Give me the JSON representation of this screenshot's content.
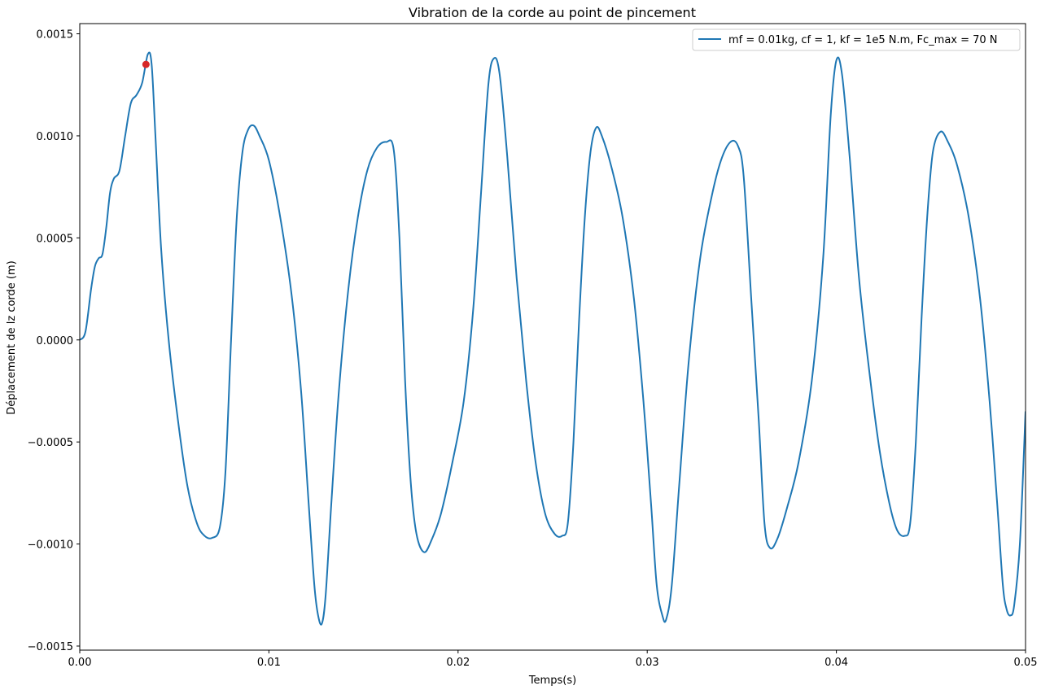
{
  "chart_data": {
    "type": "line",
    "title": "Vibration de la corde au point de pincement",
    "xlabel": "Temps(s)",
    "ylabel": "Déplacement de lz corde (m)",
    "xlim": [
      0.0,
      0.05
    ],
    "ylim": [
      -0.00152,
      0.00155
    ],
    "x_ticks": [
      {
        "value": 0.0,
        "label": "0.00"
      },
      {
        "value": 0.01,
        "label": "0.01"
      },
      {
        "value": 0.02,
        "label": "0.02"
      },
      {
        "value": 0.03,
        "label": "0.03"
      },
      {
        "value": 0.04,
        "label": "0.04"
      },
      {
        "value": 0.05,
        "label": "0.05"
      }
    ],
    "y_ticks": [
      {
        "value": 0.0015,
        "label": "0.0015"
      },
      {
        "value": 0.001,
        "label": "0.0010"
      },
      {
        "value": 0.0005,
        "label": "0.0005"
      },
      {
        "value": 0.0,
        "label": "0.0000"
      },
      {
        "value": -0.0005,
        "label": "−0.0005"
      },
      {
        "value": -0.001,
        "label": "−0.0010"
      },
      {
        "value": -0.0015,
        "label": "−0.0015"
      }
    ],
    "grid": false,
    "legend_position": "top-right",
    "series": [
      {
        "name": "mf = 0.01kg, cf = 1, kf = 1e5 N.m, Fc_max = 70 N",
        "color": "#1f77b4",
        "points": [
          [
            0.0,
            0.0
          ],
          [
            0.0003,
            4e-05
          ],
          [
            0.0006,
            0.00025
          ],
          [
            0.0008,
            0.00036
          ],
          [
            0.001,
            0.0004
          ],
          [
            0.0012,
            0.00042
          ],
          [
            0.0014,
            0.00055
          ],
          [
            0.0016,
            0.00072
          ],
          [
            0.0018,
            0.00079
          ],
          [
            0.0021,
            0.00083
          ],
          [
            0.0024,
            0.001
          ],
          [
            0.0027,
            0.00116
          ],
          [
            0.003,
            0.0012
          ],
          [
            0.0033,
            0.00126
          ],
          [
            0.0036,
            0.0014
          ],
          [
            0.0038,
            0.00135
          ],
          [
            0.004,
            0.001
          ],
          [
            0.0043,
            0.00045
          ],
          [
            0.0047,
            0.0
          ],
          [
            0.0052,
            -0.0004
          ],
          [
            0.0057,
            -0.00072
          ],
          [
            0.0062,
            -0.0009
          ],
          [
            0.0066,
            -0.00096
          ],
          [
            0.007,
            -0.00097
          ],
          [
            0.0074,
            -0.00092
          ],
          [
            0.0077,
            -0.00065
          ],
          [
            0.008,
            0.0
          ],
          [
            0.0083,
            0.0006
          ],
          [
            0.0086,
            0.00092
          ],
          [
            0.0089,
            0.00103
          ],
          [
            0.0092,
            0.00105
          ],
          [
            0.0095,
            0.001
          ],
          [
            0.01,
            0.00088
          ],
          [
            0.0106,
            0.0006
          ],
          [
            0.0112,
            0.00022
          ],
          [
            0.0117,
            -0.00025
          ],
          [
            0.0121,
            -0.0008
          ],
          [
            0.0124,
            -0.0012
          ],
          [
            0.0126,
            -0.00135
          ],
          [
            0.0128,
            -0.00139
          ],
          [
            0.013,
            -0.00125
          ],
          [
            0.0133,
            -0.0008
          ],
          [
            0.0137,
            -0.00025
          ],
          [
            0.0142,
            0.00025
          ],
          [
            0.0147,
            0.0006
          ],
          [
            0.0152,
            0.00083
          ],
          [
            0.0157,
            0.00094
          ],
          [
            0.0162,
            0.00097
          ],
          [
            0.0166,
            0.00093
          ],
          [
            0.0169,
            0.0005
          ],
          [
            0.0172,
            -0.0002
          ],
          [
            0.0175,
            -0.0007
          ],
          [
            0.0178,
            -0.00095
          ],
          [
            0.0182,
            -0.00104
          ],
          [
            0.0186,
            -0.00098
          ],
          [
            0.0191,
            -0.00085
          ],
          [
            0.0197,
            -0.0006
          ],
          [
            0.0203,
            -0.0003
          ],
          [
            0.0208,
            0.00015
          ],
          [
            0.0212,
            0.0007
          ],
          [
            0.0216,
            0.00125
          ],
          [
            0.0219,
            0.00138
          ],
          [
            0.0222,
            0.0013
          ],
          [
            0.0226,
            0.0009
          ],
          [
            0.0231,
            0.0003
          ],
          [
            0.0236,
            -0.0002
          ],
          [
            0.0241,
            -0.0006
          ],
          [
            0.0246,
            -0.00085
          ],
          [
            0.0251,
            -0.00095
          ],
          [
            0.0255,
            -0.00096
          ],
          [
            0.0258,
            -0.0009
          ],
          [
            0.0261,
            -0.0005
          ],
          [
            0.0264,
            0.0001
          ],
          [
            0.0267,
            0.0006
          ],
          [
            0.027,
            0.00092
          ],
          [
            0.0273,
            0.00104
          ],
          [
            0.0276,
            0.001
          ],
          [
            0.0281,
            0.00085
          ],
          [
            0.0287,
            0.0006
          ],
          [
            0.0293,
            0.0002
          ],
          [
            0.0298,
            -0.0003
          ],
          [
            0.0302,
            -0.0008
          ],
          [
            0.0305,
            -0.0012
          ],
          [
            0.0308,
            -0.00135
          ],
          [
            0.031,
            -0.00137
          ],
          [
            0.0313,
            -0.0012
          ],
          [
            0.0317,
            -0.0007
          ],
          [
            0.0322,
            -0.0001
          ],
          [
            0.0328,
            0.0004
          ],
          [
            0.0334,
            0.0007
          ],
          [
            0.0339,
            0.00088
          ],
          [
            0.0344,
            0.00097
          ],
          [
            0.0348,
            0.00095
          ],
          [
            0.0351,
            0.0008
          ],
          [
            0.0355,
            0.0002
          ],
          [
            0.0359,
            -0.0004
          ],
          [
            0.0362,
            -0.0009
          ],
          [
            0.0365,
            -0.00102
          ],
          [
            0.0369,
            -0.00097
          ],
          [
            0.0374,
            -0.00082
          ],
          [
            0.038,
            -0.0006
          ],
          [
            0.0387,
            -0.0002
          ],
          [
            0.0393,
            0.0004
          ],
          [
            0.0397,
            0.0011
          ],
          [
            0.04,
            0.00137
          ],
          [
            0.0403,
            0.0013
          ],
          [
            0.0407,
            0.0009
          ],
          [
            0.0412,
            0.0003
          ],
          [
            0.0418,
            -0.0002
          ],
          [
            0.0423,
            -0.00055
          ],
          [
            0.0428,
            -0.0008
          ],
          [
            0.0432,
            -0.00093
          ],
          [
            0.0436,
            -0.00096
          ],
          [
            0.0439,
            -0.0009
          ],
          [
            0.0442,
            -0.0005
          ],
          [
            0.0445,
            0.0001
          ],
          [
            0.0448,
            0.0006
          ],
          [
            0.0451,
            0.00092
          ],
          [
            0.0455,
            0.00102
          ],
          [
            0.0459,
            0.00097
          ],
          [
            0.0464,
            0.00085
          ],
          [
            0.047,
            0.0006
          ],
          [
            0.0476,
            0.0002
          ],
          [
            0.0481,
            -0.0003
          ],
          [
            0.0485,
            -0.0008
          ],
          [
            0.0488,
            -0.0012
          ],
          [
            0.049,
            -0.00132
          ],
          [
            0.0492,
            -0.00135
          ],
          [
            0.0494,
            -0.0013
          ],
          [
            0.0497,
            -0.001
          ],
          [
            0.05,
            -0.00035
          ]
        ]
      }
    ],
    "markers": [
      {
        "x": 0.0035,
        "y": 0.00135,
        "color": "#d62728"
      }
    ]
  }
}
